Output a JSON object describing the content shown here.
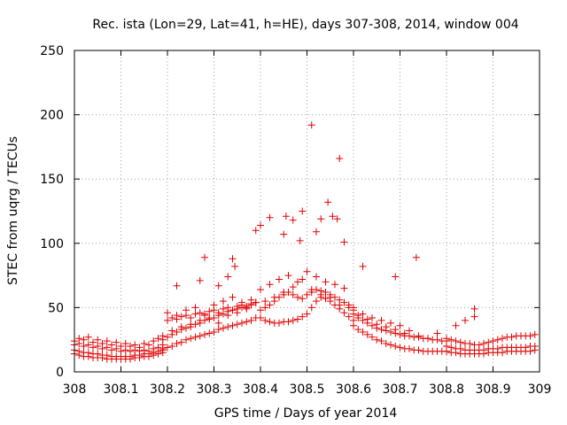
{
  "chart_data": {
    "type": "scatter",
    "title": "Rec. ista (Lon=29, Lat=41, h=HE), days 307-308, 2014, window 004",
    "xlabel": "GPS time / Days of year 2014",
    "ylabel": "STEC from uqrg / TECUs",
    "xlim": [
      308,
      309
    ],
    "ylim": [
      0,
      250
    ],
    "xticks": [
      308,
      308.1,
      308.2,
      308.3,
      308.4,
      308.5,
      308.6,
      308.7,
      308.8,
      308.9,
      309
    ],
    "xtick_labels": [
      "308",
      "308.1",
      "308.2",
      "308.3",
      "308.4",
      "308.5",
      "308.6",
      "308.7",
      "308.8",
      "308.9",
      "309"
    ],
    "yticks": [
      0,
      50,
      100,
      150,
      200,
      250
    ],
    "ytick_labels": [
      "0",
      "50",
      "100",
      "150",
      "200",
      "250"
    ],
    "grid": true,
    "marker": "+",
    "color": "#e00000",
    "series": [
      {
        "x": [
          308.0,
          308.01,
          308.02,
          308.03,
          308.04,
          308.05,
          308.06,
          308.07,
          308.08,
          308.09,
          308.1,
          308.11,
          308.12,
          308.13,
          308.14,
          308.15,
          308.16,
          308.17,
          308.18,
          308.19,
          308.0,
          308.01,
          308.02,
          308.03,
          308.04,
          308.05,
          308.06,
          308.07,
          308.08,
          308.09,
          308.1,
          308.11,
          308.12,
          308.13,
          308.14,
          308.15,
          308.16,
          308.17,
          308.18,
          308.19,
          308.0,
          308.01,
          308.02,
          308.03,
          308.04,
          308.05,
          308.06,
          308.07,
          308.08,
          308.09,
          308.1,
          308.11,
          308.12,
          308.13,
          308.14,
          308.15,
          308.16,
          308.17,
          308.18,
          308.19,
          308.0,
          308.01,
          308.02,
          308.03,
          308.04,
          308.05,
          308.06,
          308.07,
          308.08,
          308.09,
          308.1,
          308.11,
          308.12,
          308.13,
          308.14,
          308.15,
          308.16,
          308.17,
          308.18,
          308.19,
          308.19,
          308.2,
          308.21,
          308.22,
          308.23,
          308.24,
          308.25,
          308.26,
          308.27,
          308.28,
          308.29,
          308.3,
          308.31,
          308.32,
          308.33,
          308.34,
          308.35,
          308.36,
          308.37,
          308.38,
          308.39,
          308.19,
          308.2,
          308.21,
          308.22,
          308.23,
          308.24,
          308.25,
          308.26,
          308.27,
          308.28,
          308.29,
          308.3,
          308.31,
          308.32,
          308.33,
          308.34,
          308.35,
          308.36,
          308.37,
          308.38,
          308.39,
          308.2,
          308.21,
          308.22,
          308.23,
          308.24,
          308.25,
          308.26,
          308.27,
          308.28,
          308.29,
          308.3,
          308.31,
          308.32,
          308.33,
          308.34,
          308.35,
          308.36,
          308.37,
          308.38,
          308.39,
          308.4,
          308.41,
          308.42,
          308.43,
          308.44,
          308.45,
          308.46,
          308.47,
          308.48,
          308.49,
          308.5,
          308.51,
          308.52,
          308.53,
          308.54,
          308.55,
          308.56,
          308.57,
          308.58,
          308.59,
          308.6,
          308.4,
          308.41,
          308.42,
          308.43,
          308.44,
          308.45,
          308.46,
          308.47,
          308.48,
          308.49,
          308.5,
          308.51,
          308.52,
          308.53,
          308.54,
          308.55,
          308.56,
          308.57,
          308.58,
          308.59,
          308.6,
          308.6,
          308.61,
          308.62,
          308.63,
          308.64,
          308.65,
          308.66,
          308.67,
          308.68,
          308.69,
          308.7,
          308.71,
          308.72,
          308.73,
          308.74,
          308.75,
          308.76,
          308.77,
          308.78,
          308.79,
          308.8,
          308.6,
          308.61,
          308.62,
          308.63,
          308.64,
          308.65,
          308.66,
          308.67,
          308.68,
          308.69,
          308.7,
          308.71,
          308.72,
          308.73,
          308.74,
          308.75,
          308.76,
          308.77,
          308.78,
          308.79,
          308.8,
          308.8,
          308.81,
          308.82,
          308.83,
          308.84,
          308.85,
          308.86,
          308.87,
          308.88,
          308.89,
          308.9,
          308.91,
          308.92,
          308.93,
          308.94,
          308.95,
          308.96,
          308.97,
          308.98,
          308.99,
          308.8,
          308.81,
          308.82,
          308.83,
          308.84,
          308.85,
          308.86,
          308.87,
          308.88,
          308.89,
          308.9,
          308.91,
          308.92,
          308.93,
          308.94,
          308.95,
          308.96,
          308.97,
          308.98,
          308.99,
          308.8,
          308.81,
          308.82,
          308.83,
          308.84,
          308.85,
          308.86,
          308.87,
          308.88,
          308.89,
          308.9,
          308.91,
          308.92,
          308.93,
          308.94,
          308.95,
          308.96,
          308.97,
          308.98,
          308.99,
          308.2,
          308.22,
          308.24,
          308.26,
          308.28,
          308.3,
          308.32,
          308.34,
          308.36,
          308.38,
          308.21,
          308.23,
          308.25,
          308.27,
          308.29,
          308.31,
          308.33,
          308.35,
          308.37,
          308.4,
          308.42,
          308.44,
          308.46,
          308.48,
          308.5,
          308.52,
          308.54,
          308.56,
          308.58,
          308.41,
          308.43,
          308.45,
          308.47,
          308.49,
          308.51,
          308.53,
          308.55,
          308.57,
          308.59,
          308.6,
          308.62,
          308.64,
          308.66,
          308.68,
          308.7,
          308.61,
          308.63,
          308.65,
          308.67,
          308.69,
          308.71,
          308.72,
          308.74,
          308.76,
          308.78,
          308.82,
          308.84,
          308.86,
          308.22,
          308.27,
          308.28,
          308.31,
          308.33,
          308.34,
          308.345,
          308.39,
          308.4,
          308.42,
          308.45,
          308.455,
          308.47,
          308.485,
          308.49,
          308.51,
          308.52,
          308.53,
          308.545,
          308.555,
          308.565,
          308.57,
          308.58,
          308.62,
          308.69,
          308.735,
          308.86
        ],
        "y": [
          14,
          13,
          12,
          12,
          11,
          11,
          11,
          10,
          10,
          10,
          10,
          10,
          10,
          11,
          11,
          12,
          12,
          13,
          14,
          15,
          17,
          16,
          15,
          15,
          14,
          14,
          13,
          13,
          12,
          12,
          12,
          12,
          12,
          13,
          13,
          14,
          14,
          15,
          16,
          18,
          21,
          22,
          20,
          21,
          19,
          20,
          18,
          19,
          17,
          18,
          16,
          17,
          16,
          17,
          16,
          17,
          16,
          18,
          19,
          21,
          24,
          26,
          25,
          27,
          23,
          25,
          22,
          24,
          21,
          23,
          20,
          22,
          20,
          21,
          19,
          22,
          21,
          24,
          26,
          28,
          17,
          19,
          20,
          22,
          23,
          25,
          26,
          27,
          28,
          29,
          30,
          31,
          33,
          34,
          35,
          36,
          37,
          38,
          39,
          40,
          42,
          25,
          27,
          29,
          31,
          33,
          34,
          35,
          37,
          38,
          40,
          41,
          42,
          44,
          45,
          47,
          48,
          49,
          50,
          51,
          52,
          54,
          40,
          42,
          41,
          43,
          44,
          42,
          45,
          46,
          44,
          47,
          48,
          46,
          49,
          50,
          48,
          51,
          52,
          50,
          53,
          54,
          42,
          40,
          39,
          38,
          38,
          39,
          39,
          40,
          41,
          43,
          45,
          50,
          55,
          58,
          57,
          55,
          52,
          49,
          46,
          43,
          40,
          48,
          50,
          52,
          55,
          58,
          60,
          62,
          60,
          58,
          57,
          60,
          62,
          64,
          63,
          62,
          60,
          58,
          56,
          54,
          52,
          50,
          36,
          33,
          31,
          29,
          27,
          25,
          24,
          22,
          21,
          20,
          19,
          18,
          18,
          17,
          17,
          16,
          16,
          16,
          16,
          16,
          16,
          45,
          42,
          40,
          38,
          36,
          34,
          33,
          32,
          31,
          30,
          29,
          28,
          28,
          27,
          27,
          26,
          26,
          25,
          25,
          24,
          24,
          16,
          15,
          15,
          14,
          14,
          14,
          14,
          14,
          14,
          15,
          15,
          15,
          15,
          16,
          16,
          16,
          16,
          16,
          16,
          17,
          20,
          19,
          18,
          18,
          17,
          17,
          17,
          17,
          17,
          18,
          18,
          18,
          19,
          19,
          19,
          19,
          19,
          19,
          20,
          20,
          26,
          25,
          24,
          23,
          22,
          22,
          21,
          21,
          22,
          23,
          24,
          25,
          26,
          27,
          27,
          28,
          28,
          28,
          28,
          29,
          46,
          44,
          48,
          50,
          45,
          52,
          55,
          58,
          54,
          56,
          32,
          35,
          37,
          40,
          42,
          38,
          44,
          46,
          49,
          64,
          68,
          72,
          75,
          70,
          78,
          74,
          70,
          68,
          65,
          55,
          58,
          62,
          66,
          72,
          64,
          60,
          58,
          52,
          50,
          48,
          45,
          42,
          40,
          38,
          36,
          44,
          41,
          37,
          35,
          33,
          30,
          32,
          28,
          26,
          30,
          36,
          40,
          43,
          67,
          71,
          89,
          67,
          74,
          88,
          82,
          110,
          114,
          120,
          107,
          121,
          118,
          102,
          125,
          192,
          109,
          119,
          132,
          121,
          119,
          166,
          101,
          82,
          74,
          89,
          49
        ]
      }
    ]
  }
}
